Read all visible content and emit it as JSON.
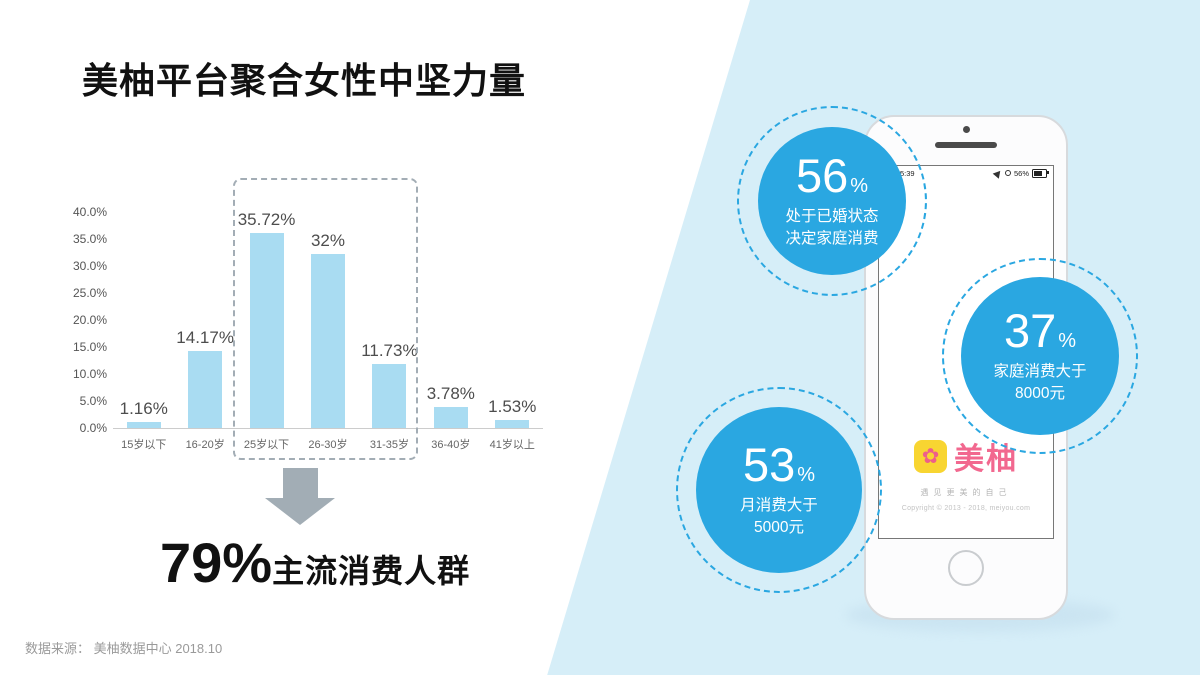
{
  "title": "美柚平台聚合女性中坚力量",
  "source": "数据来源： 美柚数据中心 2018.10",
  "colors": {
    "bar_blue": "#a9dcf2",
    "accent_blue": "#2aa7e1",
    "wedge_blue": "#d6eef8",
    "brand_pink": "#f2688f",
    "brand_yellow": "#f8d531",
    "arrow_gray": "#a2adb5"
  },
  "chart_data": {
    "type": "bar",
    "title": "",
    "xlabel": "",
    "ylabel": "",
    "categories": [
      "15岁以下",
      "16-20岁",
      "25岁以下",
      "26-30岁",
      "31-35岁",
      "36-40岁",
      "41岁以上"
    ],
    "values": [
      1.16,
      14.17,
      35.72,
      32,
      11.73,
      3.78,
      1.53
    ],
    "value_labels": [
      "1.16%",
      "14.17%",
      "35.72%",
      "32%",
      "11.73%",
      "3.78%",
      "1.53%"
    ],
    "ylim": [
      0,
      40
    ],
    "yticks": [
      "0.0%",
      "5.0%",
      "10.0%",
      "15.0%",
      "20.0%",
      "25.0%",
      "30.0%",
      "35.0%",
      "40.0%"
    ],
    "grid": false,
    "legend": null,
    "highlight_categories": [
      "25岁以下",
      "26-30岁",
      "31-35岁"
    ]
  },
  "conclusion": {
    "value": "79%",
    "label": "主流消费人群"
  },
  "stats": [
    {
      "id": "married",
      "value": "56",
      "unit": "%",
      "lines": [
        "处于已婚状态",
        "决定家庭消费"
      ]
    },
    {
      "id": "family-spend",
      "value": "37",
      "unit": "%",
      "lines": [
        "家庭消费大于",
        "8000元"
      ]
    },
    {
      "id": "monthly-spend",
      "value": "53",
      "unit": "%",
      "lines": [
        "月消费大于",
        "5000元"
      ]
    }
  ],
  "phone": {
    "status_time": "下午5:39",
    "status_battery": "56%",
    "app_name": "美柚",
    "app_icon_glyph": "✿",
    "app_tagline": "遇见更美的自己",
    "copyright": "Copyright © 2013 - 2018, meiyou.com"
  }
}
